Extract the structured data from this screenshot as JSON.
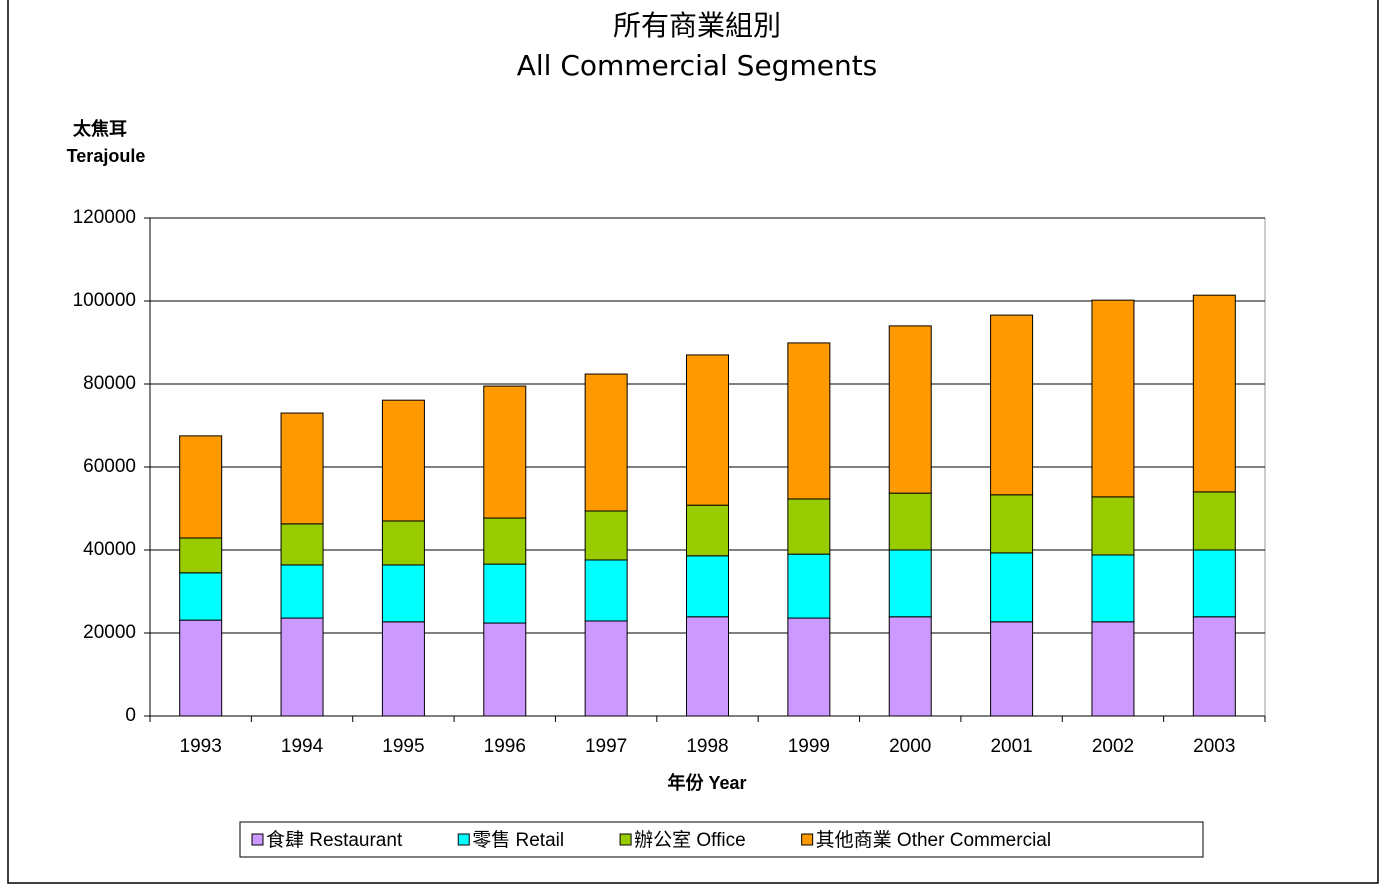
{
  "chart_data": {
    "type": "stacked_bar",
    "title": [
      "所有商業組別",
      "All Commercial Segments"
    ],
    "ylabel": [
      "太焦耳",
      "Terajoule"
    ],
    "xlabel": "年份 Year",
    "categories": [
      "1993",
      "1994",
      "1995",
      "1996",
      "1997",
      "1998",
      "1999",
      "2000",
      "2001",
      "2002",
      "2003"
    ],
    "series": [
      {
        "name": "食肆 Restaurant",
        "color": "#cc99ff",
        "values": [
          23100,
          23600,
          22700,
          22400,
          22900,
          23900,
          23600,
          23900,
          22700,
          22700,
          23900
        ]
      },
      {
        "name": "零售 Retail",
        "color": "#00ffff",
        "values": [
          11400,
          12800,
          13700,
          14200,
          14700,
          14700,
          15400,
          16100,
          16600,
          16100,
          16100
        ]
      },
      {
        "name": "辦公室 Office",
        "color": "#99cc00",
        "values": [
          8400,
          9900,
          10600,
          11100,
          11800,
          12200,
          13300,
          13700,
          14000,
          14000,
          14000
        ]
      },
      {
        "name": "其他商業 Other Commercial",
        "color": "#ff9900",
        "values": [
          24600,
          26700,
          29100,
          31800,
          33000,
          36200,
          37600,
          40300,
          43300,
          47400,
          47400
        ]
      }
    ],
    "ylim": [
      0,
      120000
    ],
    "yticks": [
      0,
      20000,
      40000,
      60000,
      80000,
      100000,
      120000
    ],
    "grid": true,
    "legend": "bottom"
  }
}
